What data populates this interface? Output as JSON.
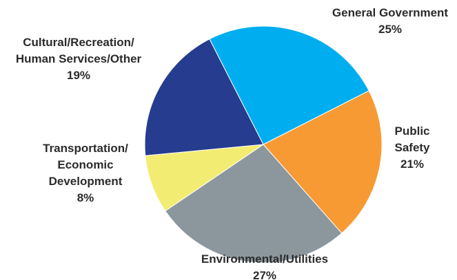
{
  "chart_data": {
    "type": "pie",
    "title": "",
    "slices": [
      {
        "name": "General Government",
        "label_lines": [
          "General Government"
        ],
        "value_label": "25%",
        "value": 25,
        "color": "#00AEEF"
      },
      {
        "name": "Public Safety",
        "label_lines": [
          "Public",
          "Safety"
        ],
        "value_label": "21%",
        "value": 21,
        "color": "#F79A34"
      },
      {
        "name": "Environmental/Utilities",
        "label_lines": [
          "Environmental/Utilities"
        ],
        "value_label": "27%",
        "value": 27,
        "color": "#8C979D"
      },
      {
        "name": "Transportation/Economic Development",
        "label_lines": [
          "Transportation/",
          "Economic",
          "Development"
        ],
        "value_label": "8%",
        "value": 8,
        "color": "#F3EC72"
      },
      {
        "name": "Cultural/Recreation/Human Services/Other",
        "label_lines": [
          "Cultural/Recreation/",
          "Human Services/Other"
        ],
        "value_label": "19%",
        "value": 19,
        "color": "#253C8F"
      }
    ]
  }
}
